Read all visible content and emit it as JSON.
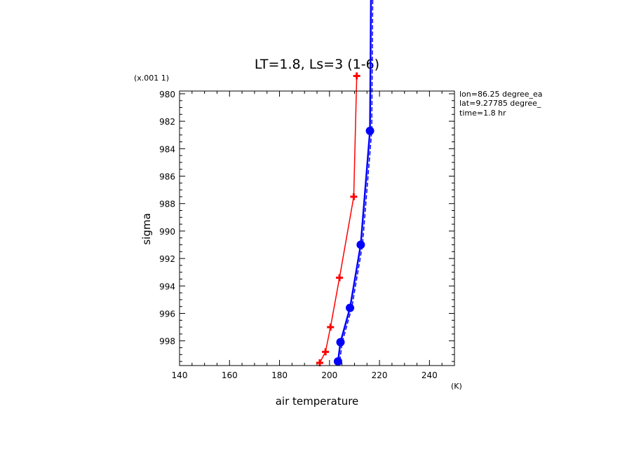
{
  "chart_data": {
    "type": "line",
    "title": "LT=1.8, Ls=3 (1-6)",
    "xlabel": "air temperature",
    "xunit": "(K)",
    "ylabel": "sigma",
    "yunit": "(x.001 1)",
    "xlim": [
      140,
      250
    ],
    "ylim": [
      979.8,
      999.8
    ],
    "x_ticks": [
      140,
      160,
      180,
      200,
      220,
      240
    ],
    "y_ticks": [
      980,
      982,
      984,
      986,
      988,
      990,
      992,
      994,
      996,
      998
    ],
    "y_reversed": true,
    "annotations": [
      "lon=86.25 degree_ea",
      "lat=9.27785 degree_",
      "time=1.8 hr"
    ],
    "series": [
      {
        "color": "#ff0000",
        "marker": "plus",
        "points": [
          {
            "x": 210.9,
            "y": 978.7
          },
          {
            "x": 209.7,
            "y": 987.5
          },
          {
            "x": 204.0,
            "y": 993.4
          },
          {
            "x": 200.4,
            "y": 997.0
          },
          {
            "x": 198.4,
            "y": 998.8
          },
          {
            "x": 196.1,
            "y": 999.6
          }
        ]
      },
      {
        "color": "#0000ff",
        "marker": "circle",
        "points": [
          {
            "x": 216.2,
            "y": 982.7
          },
          {
            "x": 212.5,
            "y": 991.0
          },
          {
            "x": 208.2,
            "y": 995.6
          },
          {
            "x": 204.4,
            "y": 998.1
          },
          {
            "x": 203.4,
            "y": 999.5
          }
        ]
      }
    ]
  }
}
